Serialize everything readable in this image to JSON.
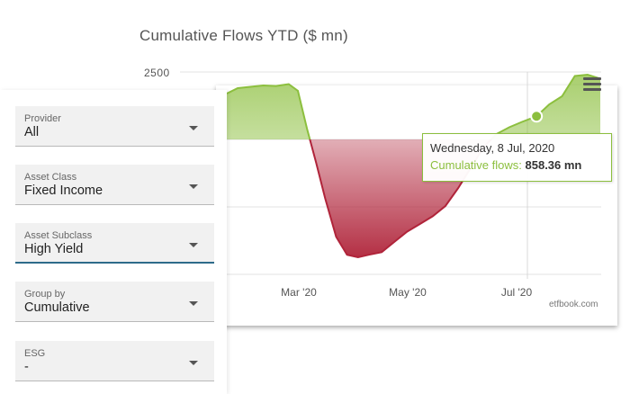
{
  "chart": {
    "title": "Cumulative Flows YTD ($ mn)",
    "credit": "etfbook.com",
    "menu_icon": "hamburger-menu-icon"
  },
  "tooltip": {
    "date": "Wednesday, 8 Jul, 2020",
    "label": "Cumulative flows:",
    "value": "858.36 mn"
  },
  "filters": [
    {
      "label": "Provider",
      "value": "All"
    },
    {
      "label": "Asset Class",
      "value": "Fixed Income"
    },
    {
      "label": "Asset Subclass",
      "value": "High Yield",
      "active": true
    },
    {
      "label": "Group by",
      "value": "Cumulative"
    },
    {
      "label": "ESG",
      "value": "-"
    }
  ],
  "colors": {
    "positive": "#8cbf3e",
    "negative": "#b0243a",
    "active_underline": "#2d6b8a"
  },
  "chart_data": {
    "type": "area",
    "title": "Cumulative Flows YTD ($ mn)",
    "xlabel": "",
    "ylabel": "",
    "y_ticks": [
      "2500"
    ],
    "x_ticks": [
      "Mar '20",
      "May '20",
      "Jul '20"
    ],
    "grid": true,
    "series": [
      {
        "x": [
          "2020-01-20",
          "2020-01-26",
          "2020-02-02",
          "2020-02-09",
          "2020-02-16",
          "2020-02-23",
          "2020-02-28",
          "2020-03-04",
          "2020-03-09",
          "2020-03-14",
          "2020-03-20",
          "2020-03-26",
          "2020-04-01",
          "2020-04-07",
          "2020-04-14",
          "2020-04-21",
          "2020-04-28",
          "2020-05-05",
          "2020-05-12",
          "2020-05-19",
          "2020-05-26",
          "2020-06-02",
          "2020-06-09",
          "2020-06-16",
          "2020-06-23",
          "2020-06-30",
          "2020-07-08",
          "2020-07-15",
          "2020-07-22",
          "2020-07-29",
          "2020-08-05",
          "2020-08-12"
        ],
        "values": [
          1700,
          1900,
          1950,
          2000,
          1980,
          2050,
          1800,
          400,
          -900,
          -2300,
          -3800,
          -4500,
          -4600,
          -4500,
          -4400,
          -4000,
          -3600,
          -3300,
          -3000,
          -2600,
          -1900,
          -1100,
          -300,
          200,
          450,
          650,
          858,
          1300,
          1600,
          2350,
          2400,
          2250
        ]
      }
    ]
  }
}
